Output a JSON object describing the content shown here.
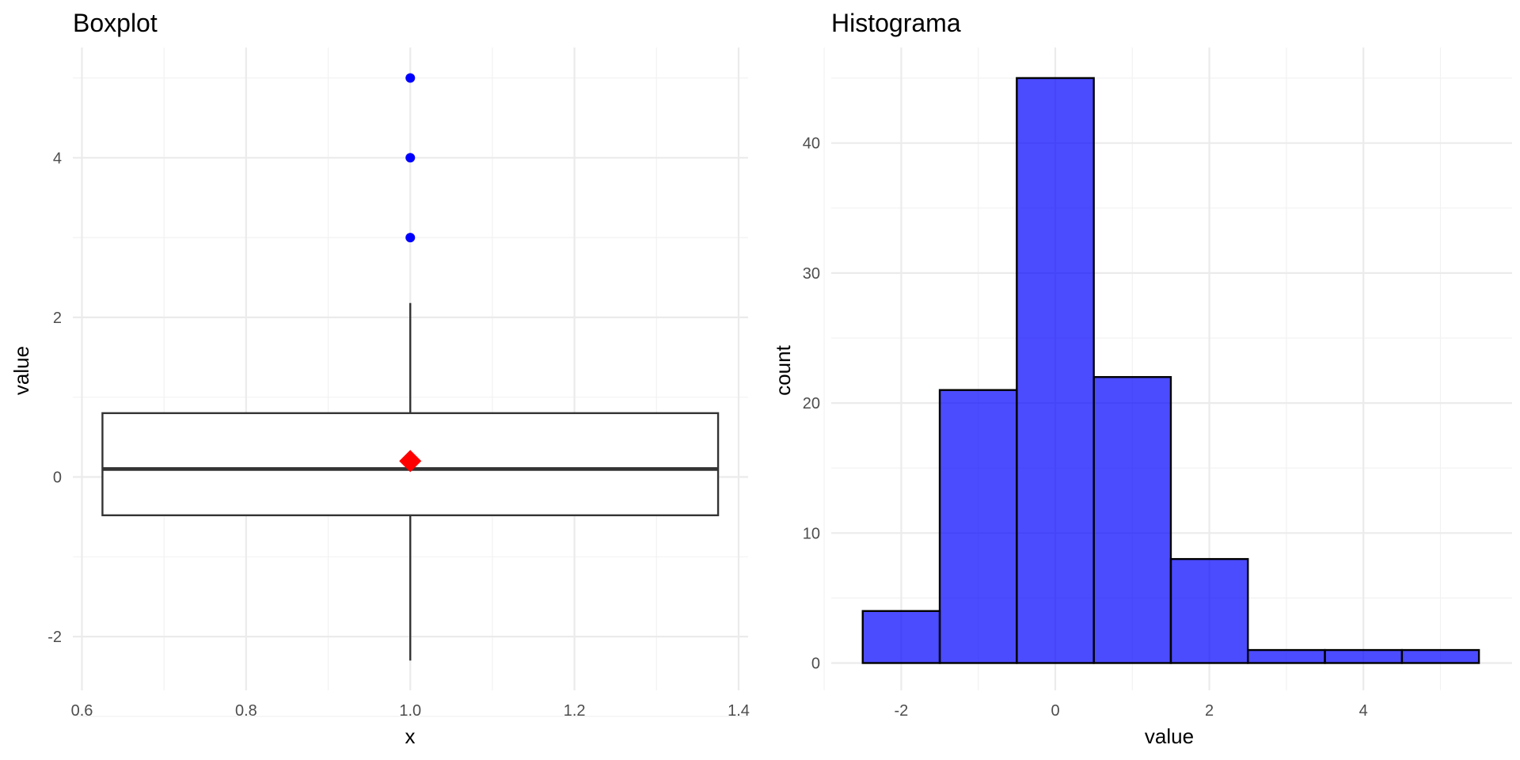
{
  "chart_data": [
    {
      "type": "boxplot",
      "title": "Boxplot",
      "xlabel": "x",
      "ylabel": "value",
      "xlim": [
        0.6,
        1.4
      ],
      "ylim": [
        -2.3,
        5.0
      ],
      "x_ticks": [
        0.6,
        0.8,
        1.0,
        1.2,
        1.4
      ],
      "x_tick_labels": [
        "0.6",
        "0.8",
        "1.0",
        "1.2",
        "1.4"
      ],
      "y_ticks": [
        -2,
        0,
        2,
        4
      ],
      "y_tick_labels": [
        "-2",
        "0",
        "2",
        "4"
      ],
      "grid": true,
      "box": {
        "x": 1.0,
        "xmin": 0.625,
        "xmax": 1.375,
        "q1": -0.48,
        "median": 0.1,
        "q3": 0.8,
        "whisker_low": -2.3,
        "whisker_high": 2.18,
        "mean": 0.2
      },
      "outliers": [
        3.0,
        4.0,
        5.0
      ],
      "colors": {
        "box_line": "#333333",
        "box_fill": "#ffffff",
        "outlier": "#0000ff",
        "mean": "#ff0000"
      }
    },
    {
      "type": "bar",
      "subtype": "histogram",
      "title": "Histograma",
      "xlabel": "value",
      "ylabel": "count",
      "bins": [
        {
          "x0": -2.5,
          "x1": -1.5,
          "count": 4
        },
        {
          "x0": -1.5,
          "x1": -0.5,
          "count": 21
        },
        {
          "x0": -0.5,
          "x1": 0.5,
          "count": 45
        },
        {
          "x0": 0.5,
          "x1": 1.5,
          "count": 22
        },
        {
          "x0": 1.5,
          "x1": 2.5,
          "count": 8
        },
        {
          "x0": 2.5,
          "x1": 3.5,
          "count": 1
        },
        {
          "x0": 3.5,
          "x1": 4.5,
          "count": 1
        },
        {
          "x0": 4.5,
          "x1": 5.5,
          "count": 1
        }
      ],
      "xlim": [
        -3.4,
        6.4
      ],
      "ylim": [
        -2.3,
        45
      ],
      "x_ticks": [
        -2,
        0,
        2,
        4
      ],
      "x_tick_labels": [
        "-2",
        "0",
        "2",
        "4"
      ],
      "y_ticks": [
        0,
        10,
        20,
        30,
        40
      ],
      "y_tick_labels": [
        "0",
        "10",
        "20",
        "30",
        "40"
      ],
      "grid": true,
      "colors": {
        "fill": "#0000ff",
        "fill_opacity": 0.7,
        "stroke": "#000000"
      }
    }
  ]
}
